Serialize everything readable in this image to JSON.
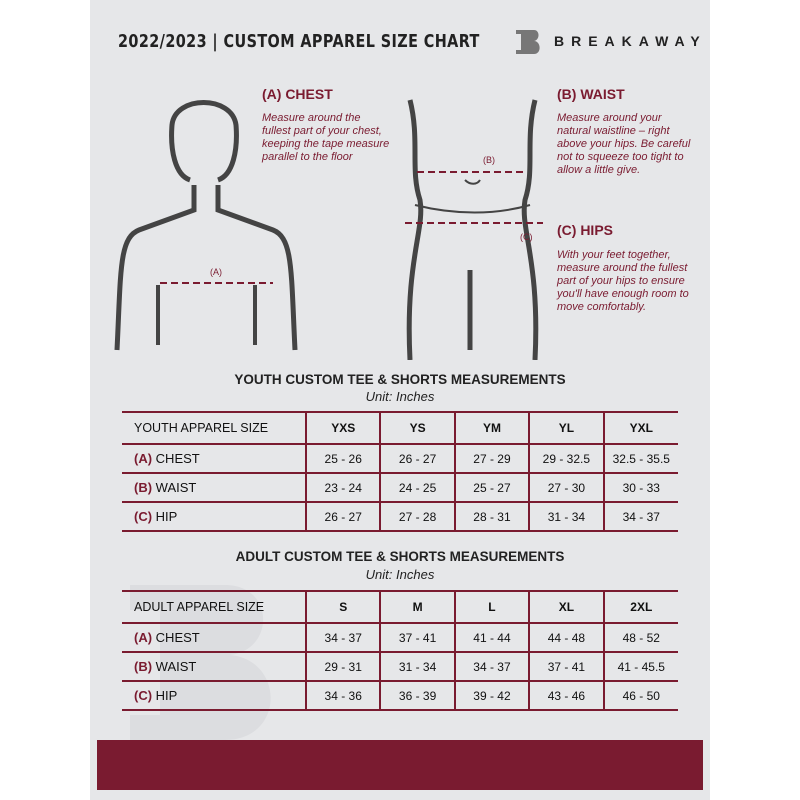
{
  "header": {
    "title": "2022/2023  |  CUSTOM APPAREL SIZE CHART",
    "brand": "BREAKAWAY"
  },
  "measure": {
    "chest": {
      "title": "(A) CHEST",
      "label": "(A)",
      "desc": "Measure around the fullest part of your chest, keeping the tape measure parallel to the floor"
    },
    "waist": {
      "title": "(B) WAIST",
      "label": "(B)",
      "desc": "Measure around your natural waistline – right above your hips. Be careful not to squeeze too tight to allow a little give."
    },
    "hips": {
      "title": "(C) HIPS",
      "label": "(C)",
      "desc": "With your feet together, measure around the fullest part of your hips to ensure you'll have enough room to move comfortably."
    }
  },
  "colors": {
    "accent": "#7a1b30",
    "background": "#e6e7e9"
  },
  "youth": {
    "title": "YOUTH CUSTOM TEE & SHORTS MEASUREMENTS",
    "unit": "Unit: Inches",
    "header": [
      "YOUTH APPAREL SIZE",
      "YXS",
      "YS",
      "YM",
      "YL",
      "YXL"
    ],
    "rows": [
      {
        "letter": "(A)",
        "name": "CHEST",
        "values": [
          "25 - 26",
          "26 - 27",
          "27 - 29",
          "29 - 32.5",
          "32.5 - 35.5"
        ]
      },
      {
        "letter": "(B)",
        "name": "WAIST",
        "values": [
          "23 - 24",
          "24 - 25",
          "25 - 27",
          "27 - 30",
          "30 - 33"
        ]
      },
      {
        "letter": "(C)",
        "name": "HIP",
        "values": [
          "26 - 27",
          "27 - 28",
          "28 - 31",
          "31 - 34",
          "34 - 37"
        ]
      }
    ]
  },
  "adult": {
    "title": "ADULT CUSTOM TEE & SHORTS MEASUREMENTS",
    "unit": "Unit: Inches",
    "header": [
      "ADULT APPAREL SIZE",
      "S",
      "M",
      "L",
      "XL",
      "2XL"
    ],
    "rows": [
      {
        "letter": "(A)",
        "name": "CHEST",
        "values": [
          "34 - 37",
          "37 - 41",
          "41 - 44",
          "44 - 48",
          "48 - 52"
        ]
      },
      {
        "letter": "(B)",
        "name": "WAIST",
        "values": [
          "29 - 31",
          "31 - 34",
          "34 - 37",
          "37 - 41",
          "41 - 45.5"
        ]
      },
      {
        "letter": "(C)",
        "name": "HIP",
        "values": [
          "34 - 36",
          "36 - 39",
          "39 - 42",
          "43 - 46",
          "46 - 50"
        ]
      }
    ]
  }
}
